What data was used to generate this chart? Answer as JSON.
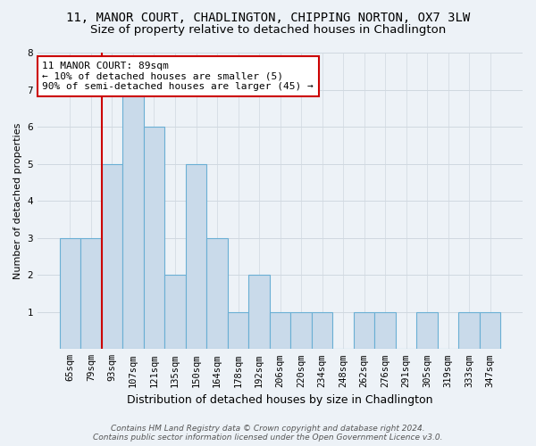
{
  "title_line1": "11, MANOR COURT, CHADLINGTON, CHIPPING NORTON, OX7 3LW",
  "title_line2": "Size of property relative to detached houses in Chadlington",
  "xlabel": "Distribution of detached houses by size in Chadlington",
  "ylabel": "Number of detached properties",
  "categories": [
    "65sqm",
    "79sqm",
    "93sqm",
    "107sqm",
    "121sqm",
    "135sqm",
    "150sqm",
    "164sqm",
    "178sqm",
    "192sqm",
    "206sqm",
    "220sqm",
    "234sqm",
    "248sqm",
    "262sqm",
    "276sqm",
    "291sqm",
    "305sqm",
    "319sqm",
    "333sqm",
    "347sqm"
  ],
  "values": [
    3,
    3,
    5,
    7,
    6,
    2,
    5,
    3,
    1,
    2,
    1,
    1,
    1,
    0,
    1,
    1,
    0,
    1,
    0,
    1,
    1
  ],
  "bar_color": "#c9daea",
  "bar_edge_color": "#6aafd4",
  "redline_x": 1.5,
  "annotation_text_line1": "11 MANOR COURT: 89sqm",
  "annotation_text_line2": "← 10% of detached houses are smaller (5)",
  "annotation_text_line3": "90% of semi-detached houses are larger (45) →",
  "annotation_box_facecolor": "white",
  "annotation_box_edgecolor": "#cc0000",
  "ylim": [
    0,
    8
  ],
  "yticks": [
    0,
    1,
    2,
    3,
    4,
    5,
    6,
    7,
    8
  ],
  "grid_color": "#d0d8e0",
  "background_color": "#edf2f7",
  "footer_line1": "Contains HM Land Registry data © Crown copyright and database right 2024.",
  "footer_line2": "Contains public sector information licensed under the Open Government Licence v3.0.",
  "title1_fontsize": 10,
  "title2_fontsize": 9.5,
  "xlabel_fontsize": 9,
  "ylabel_fontsize": 8,
  "tick_fontsize": 7.5,
  "annotation_fontsize": 8,
  "footer_fontsize": 6.5
}
